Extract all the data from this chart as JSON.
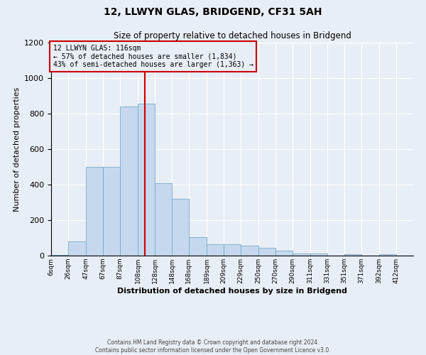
{
  "title": "12, LLWYN GLAS, BRIDGEND, CF31 5AH",
  "subtitle": "Size of property relative to detached houses in Bridgend",
  "xlabel": "Distribution of detached houses by size in Bridgend",
  "ylabel": "Number of detached properties",
  "footer_line1": "Contains HM Land Registry data © Crown copyright and database right 2024.",
  "footer_line2": "Contains public sector information licensed under the Open Government Licence v3.0.",
  "annotation_line1": "12 LLWYN GLAS: 116sqm",
  "annotation_line2": "← 57% of detached houses are smaller (1,834)",
  "annotation_line3": "43% of semi-detached houses are larger (1,363) →",
  "property_size": 116,
  "bar_left_edges": [
    6,
    26,
    47,
    67,
    87,
    108,
    128,
    148,
    168,
    189,
    209,
    229,
    250,
    270,
    290,
    311,
    331,
    351,
    371,
    392,
    412
  ],
  "bar_heights": [
    3,
    80,
    500,
    500,
    840,
    855,
    410,
    320,
    105,
    65,
    65,
    55,
    45,
    30,
    12,
    12,
    0,
    10,
    0,
    8,
    0
  ],
  "bar_color": "#c5d8ed",
  "bar_edge_color": "#7aaac8",
  "vline_color": "#cc0000",
  "annotation_box_color": "#cc0000",
  "background_color": "#e8eef5",
  "ylim": [
    0,
    1200
  ],
  "yticks": [
    0,
    200,
    400,
    600,
    800,
    1000,
    1200
  ],
  "grid_color": "#ffffff",
  "figsize": [
    6.0,
    5.0
  ],
  "dpi": 100
}
